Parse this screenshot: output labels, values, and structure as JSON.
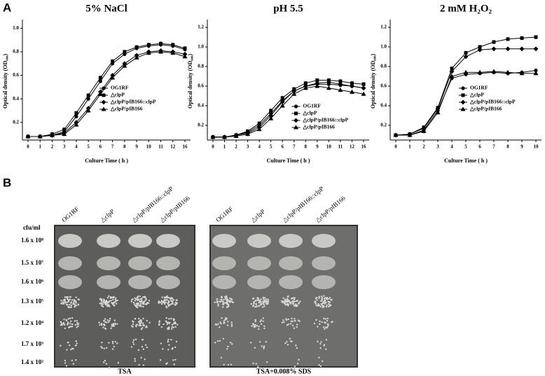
{
  "chart_data": [
    {
      "type": "line",
      "title": "5% NaCl",
      "xlabel": "Culture Time ( h )",
      "ylabel": "Optical density (OD₆₀₀)",
      "categories": [
        "0",
        "1",
        "2",
        "3",
        "4",
        "5",
        "6",
        "7",
        "8",
        "9",
        "10",
        "11",
        "12",
        "16"
      ],
      "ylim": [
        0.05,
        1.05
      ],
      "yticks": [
        0.2,
        0.4,
        0.6,
        0.8,
        {
          "value": 1,
          "label": "1.0"
        }
      ],
      "legend": "center right",
      "series": [
        {
          "name": "OG1RF",
          "color": "#000000",
          "marker": "circle",
          "values": [
            0.08,
            0.08,
            0.09,
            0.12,
            0.25,
            0.4,
            0.55,
            0.7,
            0.78,
            0.83,
            0.85,
            0.86,
            0.85,
            0.82
          ]
        },
        {
          "name": "△clpP",
          "color": "#000000",
          "marker": "square",
          "values": [
            0.08,
            0.08,
            0.1,
            0.14,
            0.28,
            0.43,
            0.58,
            0.72,
            0.8,
            0.84,
            0.86,
            0.87,
            0.86,
            0.83
          ]
        },
        {
          "name": "△clpP/pIB166::clpP",
          "color": "#000000",
          "marker": "diamond",
          "values": [
            0.08,
            0.08,
            0.09,
            0.11,
            0.2,
            0.32,
            0.46,
            0.6,
            0.7,
            0.77,
            0.8,
            0.81,
            0.8,
            0.78
          ]
        },
        {
          "name": "△clpP/pIB166",
          "color": "#000000",
          "marker": "triangle",
          "values": [
            0.08,
            0.08,
            0.09,
            0.1,
            0.18,
            0.3,
            0.44,
            0.58,
            0.68,
            0.75,
            0.79,
            0.8,
            0.79,
            0.76
          ]
        }
      ]
    },
    {
      "type": "line",
      "title": "pH 5.5",
      "xlabel": "Culture Time ( h )",
      "ylabel": "Optical density (OD₆₀₀)",
      "categories": [
        "0",
        "1",
        "2",
        "3",
        "4",
        "5",
        "6",
        "7",
        "8",
        "9",
        "10",
        "11",
        "12",
        "16"
      ],
      "ylim": [
        0.05,
        1.25
      ],
      "yticks": [
        0.2,
        0.4,
        0.6,
        0.8,
        {
          "value": 1,
          "label": "1.0"
        },
        1.2
      ],
      "legend": "lower right",
      "series": [
        {
          "name": "OG1RF",
          "color": "#000000",
          "marker": "circle",
          "values": [
            0.08,
            0.08,
            0.1,
            0.13,
            0.2,
            0.32,
            0.45,
            0.55,
            0.6,
            0.62,
            0.62,
            0.61,
            0.6,
            0.58
          ]
        },
        {
          "name": "△clpP",
          "color": "#000000",
          "marker": "square",
          "values": [
            0.08,
            0.08,
            0.1,
            0.14,
            0.22,
            0.35,
            0.48,
            0.57,
            0.63,
            0.66,
            0.66,
            0.65,
            0.63,
            0.62
          ]
        },
        {
          "name": "△clpP/pIB166::clpP",
          "color": "#000000",
          "marker": "diamond",
          "values": [
            0.08,
            0.08,
            0.1,
            0.12,
            0.18,
            0.3,
            0.44,
            0.55,
            0.6,
            0.63,
            0.64,
            0.62,
            0.6,
            0.58
          ]
        },
        {
          "name": "△clpP/pIB166",
          "color": "#000000",
          "marker": "triangle",
          "values": [
            0.08,
            0.08,
            0.09,
            0.11,
            0.16,
            0.27,
            0.4,
            0.52,
            0.58,
            0.6,
            0.58,
            0.56,
            0.54,
            0.52
          ]
        }
      ]
    },
    {
      "type": "line",
      "title": "2 mM H₂O₂",
      "xlabel": "Culture Time ( h )",
      "ylabel": "Optical density (OD₆₀₀)",
      "categories": [
        "0",
        "1",
        "2",
        "3",
        "4",
        "5",
        "6",
        "7",
        "8",
        "9",
        "10"
      ],
      "ylim": [
        0.05,
        1.25
      ],
      "yticks": [
        0.2,
        0.4,
        0.6,
        0.8,
        {
          "value": 1,
          "label": "1.0"
        },
        1.2
      ],
      "legend": "center right",
      "series": [
        {
          "name": "OG1RF",
          "color": "#000000",
          "marker": "circle",
          "values": [
            0.1,
            0.1,
            0.15,
            0.35,
            0.68,
            0.72,
            0.73,
            0.74,
            0.73,
            0.74,
            0.76
          ]
        },
        {
          "name": "△clpP",
          "color": "#000000",
          "marker": "square",
          "values": [
            0.1,
            0.11,
            0.18,
            0.38,
            0.78,
            0.94,
            1.0,
            1.05,
            1.08,
            1.09,
            1.1
          ]
        },
        {
          "name": "△clpP/pIB166::clpP",
          "color": "#000000",
          "marker": "diamond",
          "values": [
            0.1,
            0.11,
            0.17,
            0.37,
            0.75,
            0.9,
            0.97,
            0.98,
            0.98,
            0.98,
            0.98
          ]
        },
        {
          "name": "△clpP/pIB166",
          "color": "#000000",
          "marker": "triangle",
          "values": [
            0.1,
            0.1,
            0.14,
            0.33,
            0.7,
            0.74,
            0.74,
            0.75,
            0.74,
            0.73,
            0.73
          ]
        }
      ]
    }
  ],
  "panels": [
    "A",
    "B"
  ],
  "spot_assay": {
    "unit": "cfu/ml",
    "dilutions": [
      "1.6 x 10⁸",
      "1.5 x 10⁷",
      "1.6 x 10⁶",
      "1.3 x 10⁵",
      "1.2 x 10⁴",
      "1.7 x 10³",
      "1.4 x 10²"
    ],
    "strains": [
      "OG1RF",
      "△clpP",
      "△clpP/pIB166::clpP",
      "△clpP/pIB166"
    ],
    "plates": [
      "TSA",
      "TSA+0.008% SDS"
    ]
  }
}
